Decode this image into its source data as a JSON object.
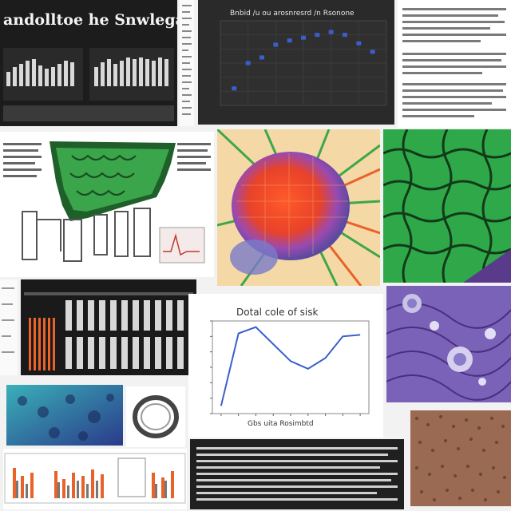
{
  "collage": {
    "banner_title": "andolltoe he Snwlegae",
    "scatter_title": "Bnbid /u ou arosnresrd /n Rsonone",
    "line_title": "Dotal cole of sisk",
    "line_caption": "Gbs uita Rosimbtd"
  },
  "colors": {
    "dark_bg": "#202020",
    "plot_bg": "#2b2b2b",
    "accent_blue": "#3a5fcd",
    "green": "#2fa84a",
    "orange": "#e8622a",
    "purple": "#6b4aa8"
  },
  "icons": [
    "bar-chart-icon",
    "scatter-plot-icon",
    "line-chart-icon",
    "cell-texture-icon",
    "microscopy-icon"
  ],
  "chart_data": [
    {
      "type": "scatter",
      "title": "Bnbid /u ou arosnresrd /n Rsonone",
      "x": [
        1,
        2,
        3,
        4,
        5,
        6,
        7,
        8,
        9,
        10,
        11
      ],
      "y": [
        1.2,
        3.0,
        3.4,
        4.3,
        4.6,
        4.8,
        5.0,
        5.2,
        5.0,
        4.4,
        3.8
      ],
      "grid": true
    },
    {
      "type": "line",
      "title": "Dotal cole of sisk",
      "xlabel": "Gbs uita Rosimbtd",
      "x": [
        1,
        2,
        3,
        4,
        5,
        6,
        7,
        8,
        9
      ],
      "y": [
        0.5,
        5.2,
        5.6,
        4.5,
        3.4,
        2.9,
        3.6,
        5.0,
        5.1
      ],
      "ylim": [
        0,
        6
      ]
    }
  ]
}
